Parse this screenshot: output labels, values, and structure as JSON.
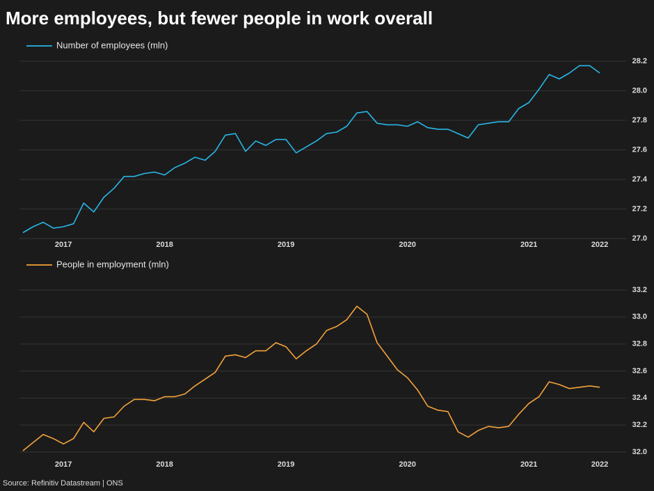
{
  "title": "More employees, but fewer people in work overall",
  "source": "Source: Refinitiv Datastream | ONS",
  "chart_data": [
    {
      "type": "line",
      "categories": [
        null,
        null,
        null,
        null,
        "2017",
        null,
        null,
        null,
        null,
        null,
        null,
        null,
        null,
        null,
        "2018",
        null,
        null,
        null,
        null,
        null,
        null,
        null,
        null,
        null,
        null,
        null,
        "2019",
        null,
        null,
        null,
        null,
        null,
        null,
        null,
        null,
        null,
        null,
        null,
        "2020",
        null,
        null,
        null,
        null,
        null,
        null,
        null,
        null,
        null,
        null,
        null,
        "2021",
        null,
        null,
        null,
        null,
        null,
        null,
        "2022"
      ],
      "series": [
        {
          "name": "Number of employees (mln)",
          "color": "#29b6e8",
          "values": [
            27.04,
            27.08,
            27.11,
            27.07,
            27.08,
            27.1,
            27.24,
            27.18,
            27.28,
            27.34,
            27.42,
            27.42,
            27.44,
            27.45,
            27.43,
            27.48,
            27.51,
            27.55,
            27.53,
            27.59,
            27.7,
            27.71,
            27.59,
            27.66,
            27.63,
            27.67,
            27.67,
            27.58,
            27.62,
            27.66,
            27.71,
            27.72,
            27.76,
            27.85,
            27.86,
            27.78,
            27.77,
            27.77,
            27.76,
            27.79,
            27.75,
            27.74,
            27.74,
            27.71,
            27.68,
            27.77,
            27.78,
            27.79,
            27.79,
            27.88,
            27.92,
            28.01,
            28.11,
            28.08,
            28.12,
            28.17,
            28.17,
            28.12
          ]
        }
      ],
      "ylim": [
        27.0,
        28.2
      ],
      "yticks": [
        {
          "value": 27,
          "label": "27.0"
        },
        27.2,
        27.4,
        27.6,
        27.8,
        {
          "value": 28,
          "label": "28.0"
        },
        28.2
      ],
      "grid": true,
      "legend": "top-left"
    },
    {
      "type": "line",
      "categories": [
        null,
        null,
        null,
        null,
        "2017",
        null,
        null,
        null,
        null,
        null,
        null,
        null,
        null,
        null,
        "2018",
        null,
        null,
        null,
        null,
        null,
        null,
        null,
        null,
        null,
        null,
        null,
        "2019",
        null,
        null,
        null,
        null,
        null,
        null,
        null,
        null,
        null,
        null,
        null,
        "2020",
        null,
        null,
        null,
        null,
        null,
        null,
        null,
        null,
        null,
        null,
        null,
        "2021",
        null,
        null,
        null,
        null,
        null,
        null,
        "2022"
      ],
      "series": [
        {
          "name": "People in employment (mln)",
          "color": "#f5a33a",
          "values": [
            32.01,
            32.07,
            32.13,
            32.1,
            32.06,
            32.1,
            32.22,
            32.15,
            32.25,
            32.26,
            32.34,
            32.39,
            32.39,
            32.38,
            32.41,
            32.41,
            32.43,
            32.49,
            32.54,
            32.59,
            32.71,
            32.72,
            32.7,
            32.75,
            32.75,
            32.81,
            32.78,
            32.69,
            32.75,
            32.8,
            32.9,
            32.93,
            32.98,
            33.08,
            33.02,
            32.81,
            32.71,
            32.61,
            32.55,
            32.46,
            32.34,
            32.31,
            32.3,
            32.15,
            32.11,
            32.16,
            32.19,
            32.18,
            32.19,
            32.28,
            32.36,
            32.41,
            32.52,
            32.5,
            32.47,
            32.48,
            32.49,
            32.48
          ]
        }
      ],
      "ylim": [
        32.0,
        33.2
      ],
      "yticks": [
        {
          "value": 32,
          "label": "32.0"
        },
        32.2,
        32.4,
        32.6,
        32.8,
        {
          "value": 33,
          "label": "33.0"
        },
        33.2
      ],
      "grid": true,
      "legend": "top-left"
    }
  ]
}
